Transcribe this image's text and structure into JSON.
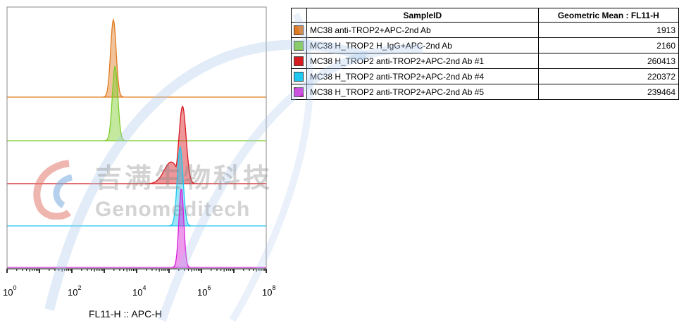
{
  "chart_data": {
    "type": "histogram",
    "xlabel": "FL11-H :: APC-H",
    "xscale": "log",
    "xlim": [
      1,
      100000000
    ],
    "x_ticks": [
      {
        "value": 1,
        "base": "10",
        "exp": "0"
      },
      {
        "value": 100,
        "base": "10",
        "exp": "2"
      },
      {
        "value": 10000,
        "base": "10",
        "exp": "4"
      },
      {
        "value": 1000000,
        "base": "10",
        "exp": "6"
      },
      {
        "value": 100000000,
        "base": "10",
        "exp": "8"
      }
    ],
    "series": [
      {
        "name": "MC38 anti-TROP2+APC-2nd Ab",
        "color": "#E07A1F",
        "geometric_mean": 1913
      },
      {
        "name": "MC38 H_TROP2 H_IgG+APC-2nd Ab",
        "color": "#7ACC29",
        "geometric_mean": 2160
      },
      {
        "name": "MC38 H_TROP2 anti-TROP2+APC-2nd Ab #1",
        "color": "#D71920",
        "geometric_mean": 260413
      },
      {
        "name": "MC38 H_TROP2 anti-TROP2+APC-2nd Ab #4",
        "color": "#1EC8F0",
        "geometric_mean": 220372
      },
      {
        "name": "MC38 H_TROP2 anti-TROP2+APC-2nd Ab #5",
        "color": "#D81ED8",
        "geometric_mean": 239464
      }
    ],
    "table": {
      "columns": [
        "SampleID",
        "Geometric Mean : FL11-H"
      ],
      "rows": [
        {
          "sample": "MC38 anti-TROP2+APC-2nd Ab",
          "value": "1913",
          "color": "#E07A1F"
        },
        {
          "sample": "MC38 H_TROP2 H_IgG+APC-2nd Ab",
          "value": "2160",
          "color": "#7ACC29"
        },
        {
          "sample": "MC38 H_TROP2 anti-TROP2+APC-2nd Ab #1",
          "value": "260413",
          "color": "#D71920"
        },
        {
          "sample": "MC38 H_TROP2 anti-TROP2+APC-2nd Ab #4",
          "value": "220372",
          "color": "#1EC8F0"
        },
        {
          "sample": "MC38 H_TROP2 anti-TROP2+APC-2nd Ab #5",
          "value": "239464",
          "color": "#D81ED8"
        }
      ]
    }
  },
  "watermark": {
    "cn": "吉满生物科技",
    "en": "Genomeditech"
  }
}
